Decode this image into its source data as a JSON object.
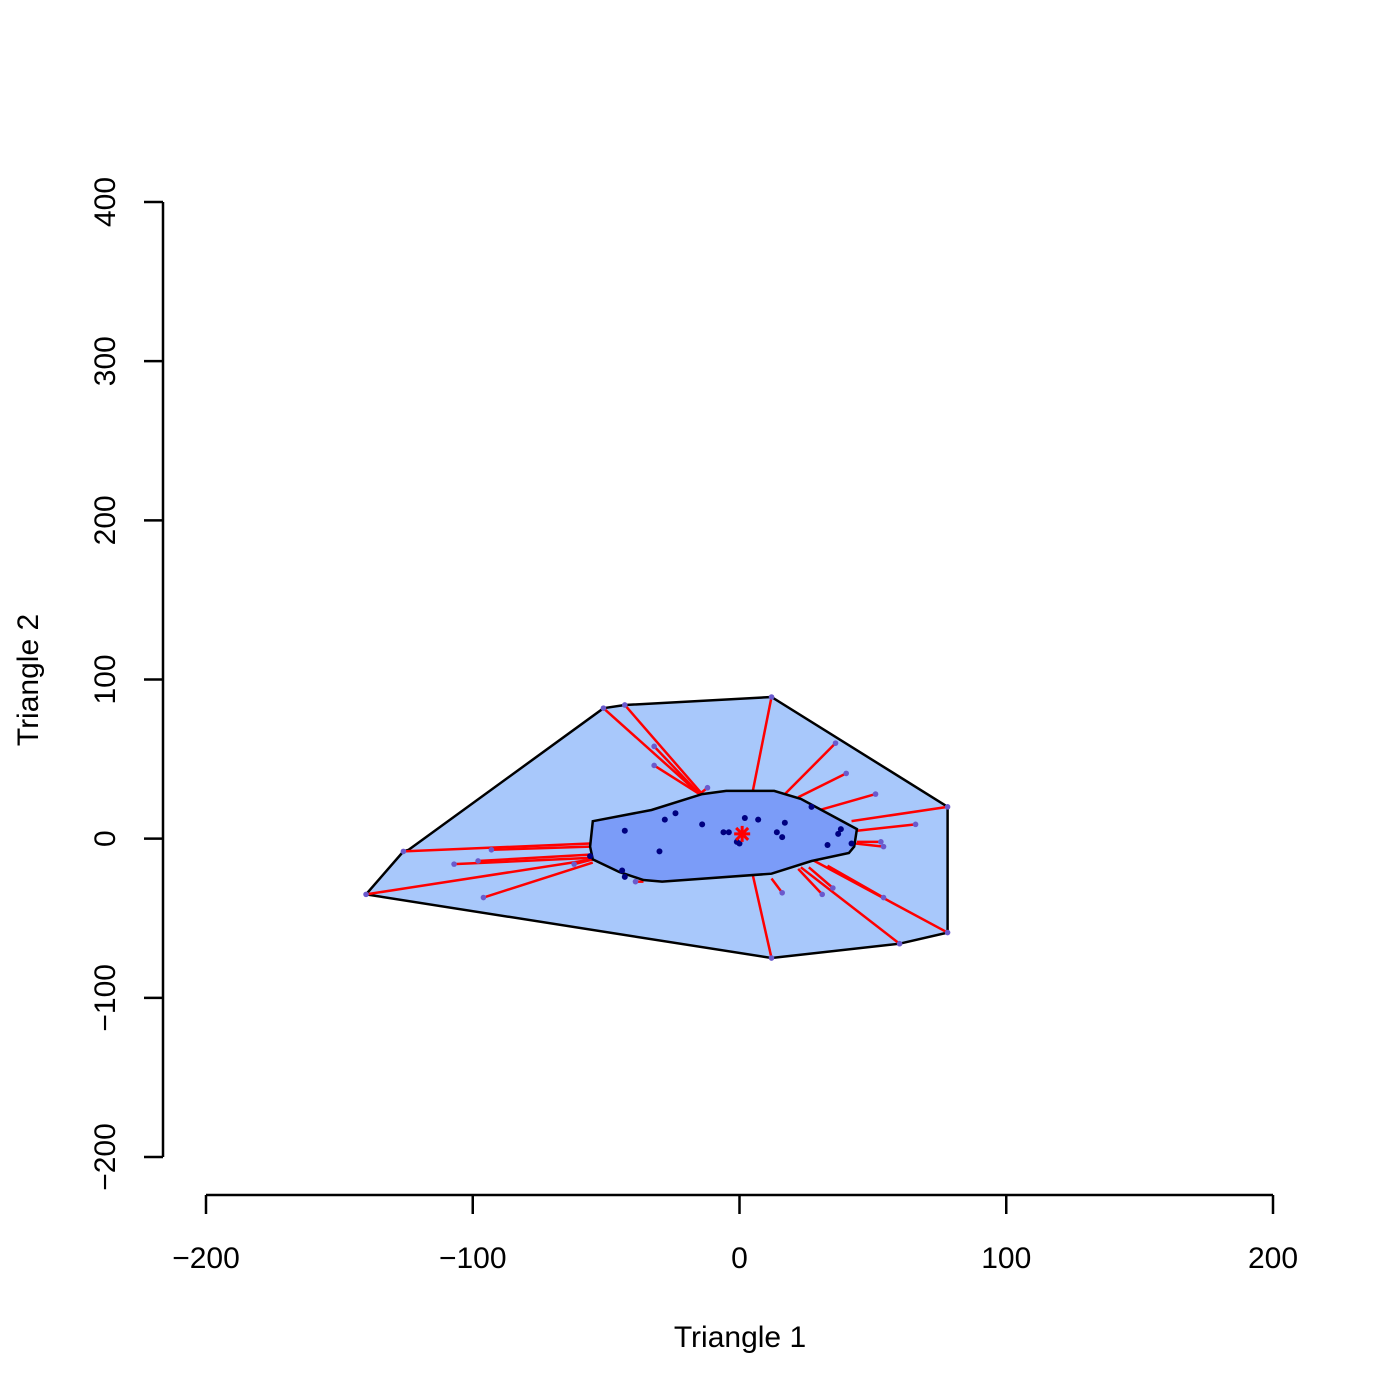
{
  "chart_data": {
    "type": "scatter",
    "title": "",
    "xlabel": "Triangle 1",
    "ylabel": "Triangle 2",
    "xlim": [
      -200,
      200
    ],
    "ylim": [
      -200,
      400
    ],
    "xticks": [
      -200,
      -100,
      0,
      100,
      200
    ],
    "yticks": [
      -200,
      -100,
      0,
      100,
      200,
      300,
      400
    ],
    "xtick_labels": [
      "−200",
      "−100",
      "0",
      "100",
      "200"
    ],
    "ytick_labels": [
      "−200",
      "−100",
      "0",
      "100",
      "200",
      "300",
      "400"
    ],
    "median": [
      1,
      3
    ],
    "colors": {
      "bag_fill": "#7b9cf8",
      "loop_fill": "#a8c8fb",
      "outline": "#000000",
      "whisker": "#ff0000",
      "inner_point": "#000080",
      "outer_point": "#6a5acd",
      "median": "#ff0000"
    },
    "bag_polygon": [
      [
        -55,
        11
      ],
      [
        -33,
        18
      ],
      [
        -14,
        28
      ],
      [
        -5,
        30
      ],
      [
        13,
        30
      ],
      [
        23,
        25
      ],
      [
        44,
        6
      ],
      [
        43,
        -5
      ],
      [
        41,
        -9
      ],
      [
        27,
        -14
      ],
      [
        12,
        -22
      ],
      [
        -29,
        -27
      ],
      [
        -36,
        -26
      ],
      [
        -45,
        -21
      ],
      [
        -55,
        -13
      ],
      [
        -56,
        -5
      ]
    ],
    "loop_polygon": [
      [
        -51,
        82
      ],
      [
        -43,
        84
      ],
      [
        12,
        89
      ],
      [
        78,
        20
      ],
      [
        78,
        -59
      ],
      [
        60,
        -66
      ],
      [
        12,
        -75
      ],
      [
        -140,
        -35
      ],
      [
        -126,
        -8
      ],
      [
        -124,
        -7
      ]
    ],
    "inner_points": [
      [
        -43,
        5
      ],
      [
        -28,
        12
      ],
      [
        -24,
        16
      ],
      [
        -14,
        9
      ],
      [
        -6,
        4
      ],
      [
        -4,
        4
      ],
      [
        -1,
        -2
      ],
      [
        0,
        -3
      ],
      [
        2,
        13
      ],
      [
        7,
        12
      ],
      [
        14,
        4
      ],
      [
        16,
        1
      ],
      [
        17,
        10
      ],
      [
        27,
        20
      ],
      [
        33,
        -4
      ],
      [
        37,
        3
      ],
      [
        38,
        6
      ],
      [
        42,
        -3
      ],
      [
        -30,
        -8
      ],
      [
        -44,
        -20
      ],
      [
        -43,
        -24
      ],
      [
        -56,
        -11
      ]
    ],
    "outer_points": [
      {
        "point": [
          -51,
          82
        ],
        "anchor": [
          -15,
          28
        ]
      },
      {
        "point": [
          -43,
          84
        ],
        "anchor": [
          -14,
          28
        ]
      },
      {
        "point": [
          -32,
          58
        ],
        "anchor": [
          -15,
          28
        ]
      },
      {
        "point": [
          -32,
          46
        ],
        "anchor": [
          -15,
          28
        ]
      },
      {
        "point": [
          -12,
          32
        ],
        "anchor": [
          -15,
          28
        ]
      },
      {
        "point": [
          12,
          89
        ],
        "anchor": [
          5,
          30
        ]
      },
      {
        "point": [
          36,
          60
        ],
        "anchor": [
          17,
          28
        ]
      },
      {
        "point": [
          40,
          41
        ],
        "anchor": [
          22,
          26
        ]
      },
      {
        "point": [
          51,
          28
        ],
        "anchor": [
          30,
          18
        ]
      },
      {
        "point": [
          78,
          20
        ],
        "anchor": [
          42,
          11
        ]
      },
      {
        "point": [
          66,
          9
        ],
        "anchor": [
          44,
          5
        ]
      },
      {
        "point": [
          53,
          -2
        ],
        "anchor": [
          44,
          -2
        ]
      },
      {
        "point": [
          54,
          -5
        ],
        "anchor": [
          43,
          -3
        ]
      },
      {
        "point": [
          78,
          -59
        ],
        "anchor": [
          27,
          -13
        ]
      },
      {
        "point": [
          60,
          -66
        ],
        "anchor": [
          23,
          -18
        ]
      },
      {
        "point": [
          54,
          -37
        ],
        "anchor": [
          33,
          -17
        ]
      },
      {
        "point": [
          35,
          -31
        ],
        "anchor": [
          26,
          -18
        ]
      },
      {
        "point": [
          31,
          -35
        ],
        "anchor": [
          22,
          -19
        ]
      },
      {
        "point": [
          16,
          -34
        ],
        "anchor": [
          12,
          -25
        ]
      },
      {
        "point": [
          12,
          -75
        ],
        "anchor": [
          5,
          -23
        ]
      },
      {
        "point": [
          -39,
          -27
        ],
        "anchor": [
          -36,
          -27
        ]
      },
      {
        "point": [
          -62,
          -16
        ],
        "anchor": [
          -55,
          -13
        ]
      },
      {
        "point": [
          -96,
          -37
        ],
        "anchor": [
          -55,
          -15
        ]
      },
      {
        "point": [
          -107,
          -16
        ],
        "anchor": [
          -55,
          -12
        ]
      },
      {
        "point": [
          -98,
          -14
        ],
        "anchor": [
          -56,
          -10
        ]
      },
      {
        "point": [
          -93,
          -7
        ],
        "anchor": [
          -56,
          -5
        ]
      },
      {
        "point": [
          -126,
          -8
        ],
        "anchor": [
          -56,
          -3
        ]
      },
      {
        "point": [
          -140,
          -35
        ],
        "anchor": [
          -55,
          -13
        ]
      }
    ]
  }
}
